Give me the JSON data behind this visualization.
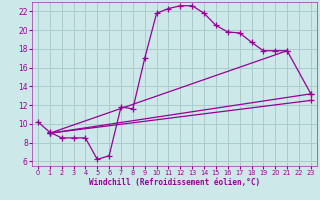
{
  "xlabel": "Windchill (Refroidissement éolien,°C)",
  "bg_color": "#cce8e8",
  "line_color": "#990099",
  "grid_color": "#aacccc",
  "xlim": [
    -0.5,
    23.5
  ],
  "ylim": [
    5.5,
    23
  ],
  "xticks": [
    0,
    1,
    2,
    3,
    4,
    5,
    6,
    7,
    8,
    9,
    10,
    11,
    12,
    13,
    14,
    15,
    16,
    17,
    18,
    19,
    20,
    21,
    22,
    23
  ],
  "yticks": [
    6,
    8,
    10,
    12,
    14,
    16,
    18,
    20,
    22
  ],
  "curve": {
    "x": [
      0,
      1,
      2,
      3,
      4,
      5,
      6,
      7,
      8,
      9,
      10,
      11,
      12,
      13,
      14,
      15,
      16,
      17,
      18,
      19,
      20,
      21,
      23
    ],
    "y": [
      10.2,
      9.1,
      8.5,
      8.5,
      8.5,
      6.2,
      6.6,
      11.8,
      11.6,
      17.0,
      21.8,
      22.3,
      22.6,
      22.6,
      21.8,
      20.5,
      19.8,
      19.7,
      18.7,
      17.8,
      17.8,
      17.8,
      13.2
    ]
  },
  "straight_lines": [
    {
      "x": [
        1,
        21
      ],
      "y": [
        9.0,
        17.8
      ]
    },
    {
      "x": [
        1,
        23
      ],
      "y": [
        9.0,
        13.2
      ]
    },
    {
      "x": [
        1,
        23
      ],
      "y": [
        9.0,
        12.5
      ]
    }
  ]
}
